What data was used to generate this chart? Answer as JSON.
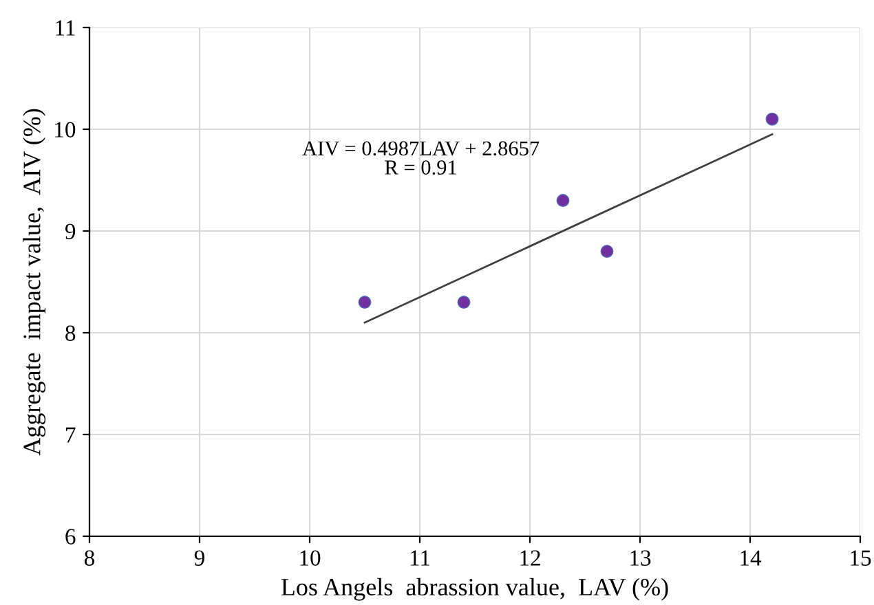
{
  "chart_data": {
    "type": "scatter",
    "xlabel": "Los Angels  abrassion value,  LAV (%)",
    "ylabel": "Aggregate  impact value,  AIV (%)",
    "series": [
      {
        "color": "#7030a0",
        "marker": "circle",
        "x": [
          10.5,
          11.4,
          12.3,
          12.7,
          14.2
        ],
        "values": [
          8.3,
          8.3,
          9.3,
          8.8,
          10.1
        ]
      },
      {
        "type": "line",
        "color": "#404040",
        "x": [
          10.5,
          14.2
        ],
        "values": [
          8.1,
          9.95
        ]
      }
    ],
    "annotations": [
      "AIV = 0.4987LAV + 2.8657\nR = 0.91"
    ],
    "xlim": [
      8,
      15
    ],
    "xticks": [
      8,
      9,
      10,
      11,
      12,
      13,
      14,
      15
    ],
    "ylim": [
      6,
      11
    ],
    "yticks": [
      6,
      7,
      8,
      9,
      10,
      11
    ],
    "grid": true
  }
}
